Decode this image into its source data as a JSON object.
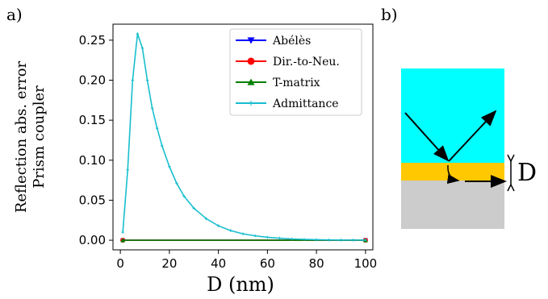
{
  "panels": {
    "a": "a)",
    "b": "b)"
  },
  "chart_data": {
    "type": "line",
    "xlabel": "D (nm)",
    "ylabel_line1": "Reflection abs. error",
    "ylabel_line2": "Prism coupler",
    "xlim": [
      -3,
      103
    ],
    "ylim": [
      -0.012,
      0.27
    ],
    "xticks": [
      0,
      20,
      40,
      60,
      80,
      100
    ],
    "xtick_labels": [
      "0",
      "20",
      "40",
      "60",
      "80",
      "100"
    ],
    "yticks": [
      0.0,
      0.05,
      0.1,
      0.15,
      0.2,
      0.25
    ],
    "ytick_labels": [
      "0.00",
      "0.05",
      "0.10",
      "0.15",
      "0.20",
      "0.25"
    ],
    "legend_position": "upper-right",
    "series": [
      {
        "name": "Abélès",
        "color": "#0000ff",
        "marker": "triangle-down",
        "x": [
          1,
          100
        ],
        "values": [
          0.0,
          0.0
        ]
      },
      {
        "name": "Dir.-to-Neu.",
        "color": "#ff0000",
        "marker": "circle",
        "x": [
          1,
          100
        ],
        "values": [
          0.0,
          0.0
        ]
      },
      {
        "name": "T-matrix",
        "color": "#008000",
        "marker": "triangle-up",
        "x": [
          1,
          100
        ],
        "values": [
          0.0,
          0.0
        ]
      },
      {
        "name": "Admittance",
        "color": "#17becf",
        "marker": "plus",
        "x": [
          1,
          3,
          5,
          7,
          9,
          11,
          13,
          15,
          17,
          20,
          23,
          26,
          30,
          35,
          40,
          45,
          50,
          55,
          60,
          65,
          70,
          75,
          80,
          85,
          90,
          95,
          100
        ],
        "values": [
          0.01,
          0.088,
          0.2,
          0.258,
          0.24,
          0.2,
          0.165,
          0.14,
          0.118,
          0.092,
          0.071,
          0.055,
          0.04,
          0.027,
          0.018,
          0.012,
          0.008,
          0.0055,
          0.0037,
          0.0025,
          0.0016,
          0.0011,
          0.0007,
          0.0004,
          0.0003,
          0.0002,
          0.0001
        ]
      }
    ]
  },
  "diagram": {
    "colors": {
      "top": "#00ffff",
      "middle": "#ffc800",
      "bottom": "#cccccc"
    },
    "label": "D"
  }
}
